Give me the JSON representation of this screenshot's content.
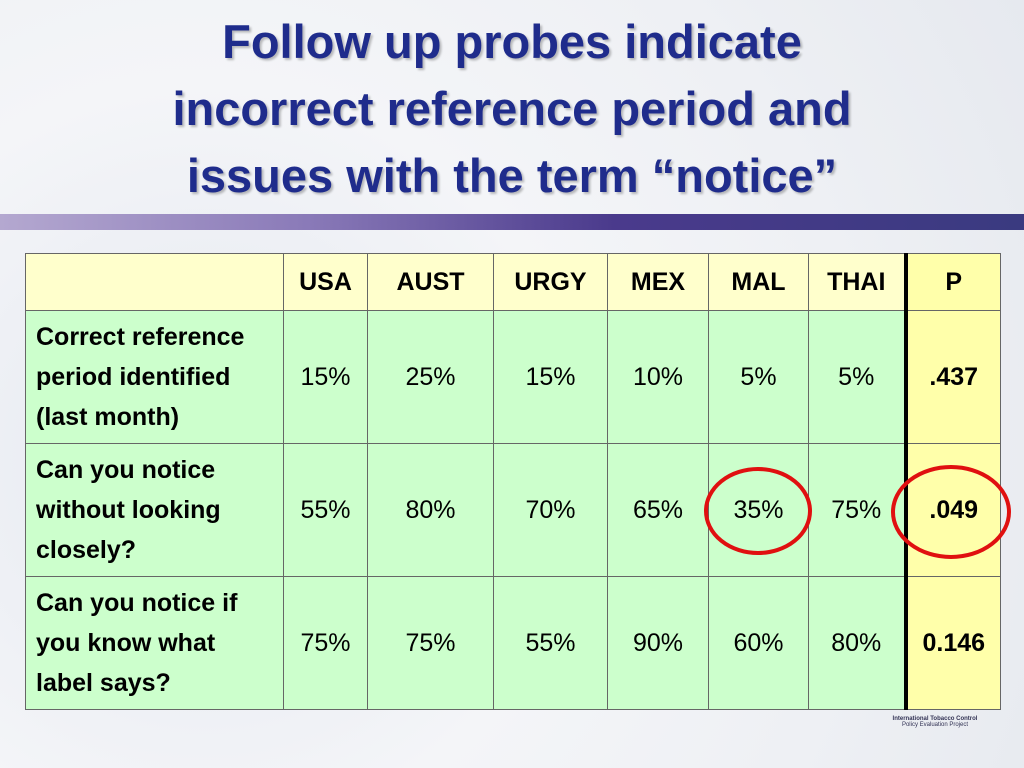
{
  "title": {
    "lines": [
      "Follow up probes indicate",
      "incorrect reference period and",
      "issues with the term “notice”"
    ]
  },
  "table": {
    "columns": [
      "USA",
      "AUST",
      "URGY",
      "MEX",
      "MAL",
      "THAI",
      "P"
    ],
    "rows": [
      {
        "label": "Correct reference period identified (last month)",
        "cells": [
          "15%",
          "25%",
          "15%",
          "10%",
          "5%",
          "5%"
        ],
        "p": ".437"
      },
      {
        "label": "Can you notice without looking closely?",
        "cells": [
          "55%",
          "80%",
          "70%",
          "65%",
          "35%",
          "75%"
        ],
        "p": ".049"
      },
      {
        "label": "Can you notice if you know what label says?",
        "cells": [
          "75%",
          "75%",
          "55%",
          "90%",
          "60%",
          "80%"
        ],
        "p": "0.146"
      }
    ]
  },
  "logo": {
    "line1": "International Tobacco Control",
    "line2": "Policy Evaluation Project"
  }
}
